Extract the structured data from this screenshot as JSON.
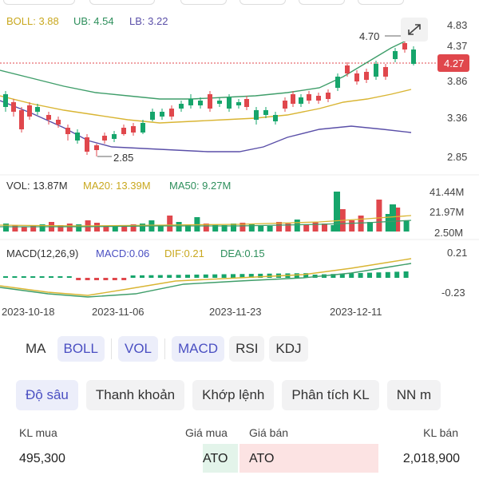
{
  "chart": {
    "boll_label": "BOLL: 3.88",
    "ub_label": "UB: 4.54",
    "lb_label": "LB: 3.22",
    "vol_label": "VOL: 13.87M",
    "ma20_label": "MA20: 13.39M",
    "ma50_label": "MA50: 9.27M",
    "macd_params": "MACD(12,26,9)",
    "macd_label": "MACD:0.06",
    "dif_label": "DIF:0.21",
    "dea_label": "DEA:0.15",
    "price_axis": [
      "4.83",
      "4.37",
      "3.86",
      "3.36",
      "2.85"
    ],
    "current_price": "4.27",
    "high_label": "4.70",
    "low_label": "2.85",
    "vol_axis": [
      "41.44M",
      "21.97M",
      "2.50M"
    ],
    "macd_axis": [
      "0.21",
      "-0.23"
    ],
    "dates": [
      "2023-10-18",
      "2023-11-06",
      "2023-11-23",
      "2023-12-11"
    ],
    "colors": {
      "up": "#16a56b",
      "down": "#e0474c",
      "boll_mid": "#d9b533",
      "boll_band": "#3f9e6a",
      "boll_lower": "#5a4fa8",
      "accent": "#4a4fc2"
    }
  },
  "indicators": {
    "main": [
      "MA",
      "BOLL"
    ],
    "vol": "VOL",
    "sub": [
      "MACD",
      "RSI",
      "KDJ"
    ],
    "active": [
      "BOLL",
      "VOL",
      "MACD"
    ]
  },
  "tabs": [
    "Độ sâu",
    "Thanh khoản",
    "Khớp lệnh",
    "Phân tích KL",
    "NN m"
  ],
  "orderbook": {
    "buy_vol_header": "KL mua",
    "buy_price_header": "Giá mua",
    "sell_price_header": "Giá bán",
    "sell_vol_header": "KL bán",
    "buy_vol": "495,300",
    "buy_price": "ATO",
    "sell_price": "ATO",
    "sell_vol": "2,018,900"
  },
  "icons": {
    "expand": "expand-arrows-icon"
  }
}
